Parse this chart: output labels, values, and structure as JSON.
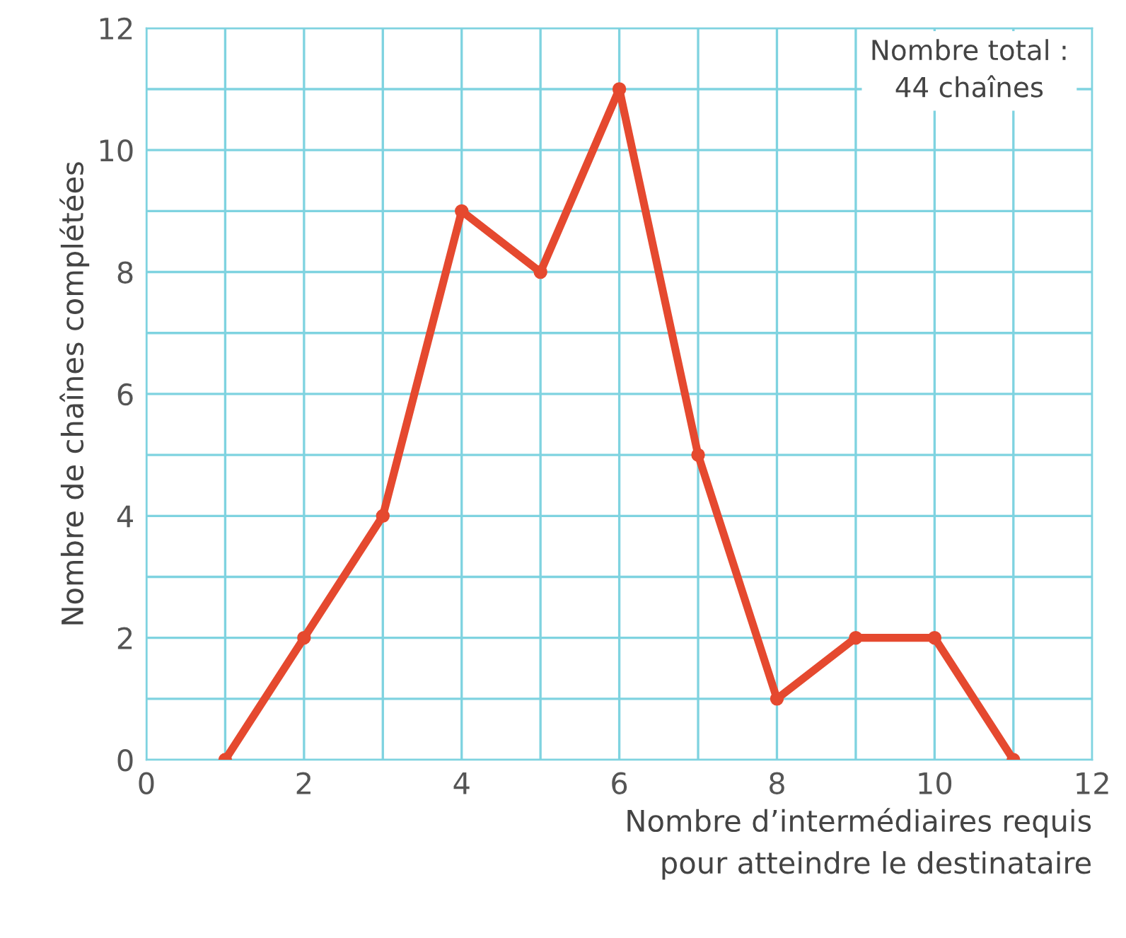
{
  "chart_data": {
    "type": "line",
    "x": [
      1,
      2,
      3,
      4,
      5,
      6,
      7,
      8,
      9,
      10,
      11
    ],
    "series": [
      {
        "color": "#e5492f",
        "values": [
          0,
          2,
          4,
          9,
          8,
          11,
          5,
          1,
          2,
          2,
          0
        ]
      }
    ],
    "xlabel": "Nombre d’intermédiaires requis\npour atteindre le destinataire",
    "ylabel": "Nombre de chaînes complétées",
    "annotations": [
      "Nombre total :\n44 chaînes"
    ],
    "xlim": [
      0,
      12
    ],
    "ylim": [
      0,
      12
    ],
    "xticks": [
      0,
      {
        "value": 1,
        "label": null
      },
      2,
      {
        "value": 3,
        "label": null
      },
      4,
      {
        "value": 5,
        "label": null
      },
      6,
      {
        "value": 7,
        "label": null
      },
      8,
      {
        "value": 9,
        "label": null
      },
      10,
      {
        "value": 11,
        "label": null
      },
      12
    ],
    "yticks": [
      0,
      {
        "value": 1,
        "label": null
      },
      2,
      {
        "value": 3,
        "label": null
      },
      4,
      {
        "value": 5,
        "label": null
      },
      6,
      {
        "value": 7,
        "label": null
      },
      8,
      {
        "value": 9,
        "label": null
      },
      10,
      {
        "value": 11,
        "label": null
      },
      12
    ],
    "grid": true,
    "marker": "circle",
    "line_style": "solid",
    "legend": false
  }
}
